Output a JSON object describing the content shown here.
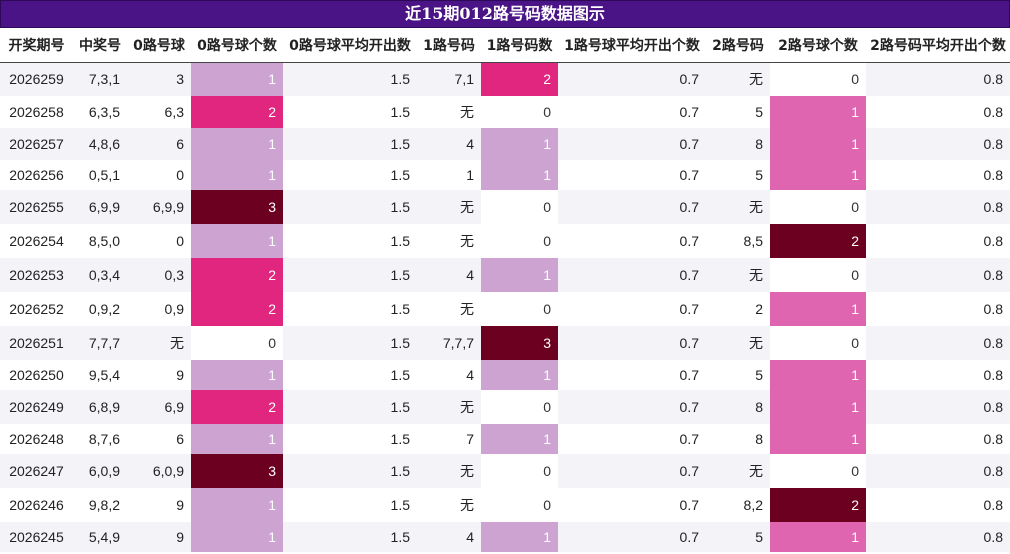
{
  "title": "近15期012路号码数据图示",
  "columns": [
    "开奖期号",
    "中奖号",
    "0路号球",
    "0路号球个数",
    "0路号球平均开出数",
    "1路号码",
    "1路号码数",
    "1路号球平均开出个数",
    "2路号码",
    "2路号球个数",
    "2路号码平均开出个数"
  ],
  "colors": {
    "title_bg": "#4a1486",
    "zero_count_0": "#ffffff",
    "zero_count_1": "#cda3d1",
    "zero_count_2": "#e0267e",
    "zero_count_3": "#6b0020",
    "one_count_0": "#ffffff",
    "one_count_1": "#cda3d1",
    "one_count_2": "#e0267e",
    "one_count_3": "#6b0020",
    "two_count_0": "#ffffff",
    "two_count_1": "#e065b1",
    "two_count_2": "#6b0020"
  },
  "rows": [
    {
      "period": "2026259",
      "number": "7,3,1",
      "r0": "3",
      "r0_count": "1",
      "r0_avg": "1.5",
      "r1": "7,1",
      "r1_count": "2",
      "r1_avg": "0.7",
      "r2": "无",
      "r2_count": "0",
      "r2_avg": "0.8"
    },
    {
      "period": "2026258",
      "number": "6,3,5",
      "r0": "6,3",
      "r0_count": "2",
      "r0_avg": "1.5",
      "r1": "无",
      "r1_count": "0",
      "r1_avg": "0.7",
      "r2": "5",
      "r2_count": "1",
      "r2_avg": "0.8"
    },
    {
      "period": "2026257",
      "number": "4,8,6",
      "r0": "6",
      "r0_count": "1",
      "r0_avg": "1.5",
      "r1": "4",
      "r1_count": "1",
      "r1_avg": "0.7",
      "r2": "8",
      "r2_count": "1",
      "r2_avg": "0.8"
    },
    {
      "period": "2026256",
      "number": "0,5,1",
      "r0": "0",
      "r0_count": "1",
      "r0_avg": "1.5",
      "r1": "1",
      "r1_count": "1",
      "r1_avg": "0.7",
      "r2": "5",
      "r2_count": "1",
      "r2_avg": "0.8"
    },
    {
      "period": "2026255",
      "number": "6,9,9",
      "r0": "6,9,9",
      "r0_count": "3",
      "r0_avg": "1.5",
      "r1": "无",
      "r1_count": "0",
      "r1_avg": "0.7",
      "r2": "无",
      "r2_count": "0",
      "r2_avg": "0.8"
    },
    {
      "period": "2026254",
      "number": "8,5,0",
      "r0": "0",
      "r0_count": "1",
      "r0_avg": "1.5",
      "r1": "无",
      "r1_count": "0",
      "r1_avg": "0.7",
      "r2": "8,5",
      "r2_count": "2",
      "r2_avg": "0.8"
    },
    {
      "period": "2026253",
      "number": "0,3,4",
      "r0": "0,3",
      "r0_count": "2",
      "r0_avg": "1.5",
      "r1": "4",
      "r1_count": "1",
      "r1_avg": "0.7",
      "r2": "无",
      "r2_count": "0",
      "r2_avg": "0.8"
    },
    {
      "period": "2026252",
      "number": "0,9,2",
      "r0": "0,9",
      "r0_count": "2",
      "r0_avg": "1.5",
      "r1": "无",
      "r1_count": "0",
      "r1_avg": "0.7",
      "r2": "2",
      "r2_count": "1",
      "r2_avg": "0.8"
    },
    {
      "period": "2026251",
      "number": "7,7,7",
      "r0": "无",
      "r0_count": "0",
      "r0_avg": "1.5",
      "r1": "7,7,7",
      "r1_count": "3",
      "r1_avg": "0.7",
      "r2": "无",
      "r2_count": "0",
      "r2_avg": "0.8"
    },
    {
      "period": "2026250",
      "number": "9,5,4",
      "r0": "9",
      "r0_count": "1",
      "r0_avg": "1.5",
      "r1": "4",
      "r1_count": "1",
      "r1_avg": "0.7",
      "r2": "5",
      "r2_count": "1",
      "r2_avg": "0.8"
    },
    {
      "period": "2026249",
      "number": "6,8,9",
      "r0": "6,9",
      "r0_count": "2",
      "r0_avg": "1.5",
      "r1": "无",
      "r1_count": "0",
      "r1_avg": "0.7",
      "r2": "8",
      "r2_count": "1",
      "r2_avg": "0.8"
    },
    {
      "period": "2026248",
      "number": "8,7,6",
      "r0": "6",
      "r0_count": "1",
      "r0_avg": "1.5",
      "r1": "7",
      "r1_count": "1",
      "r1_avg": "0.7",
      "r2": "8",
      "r2_count": "1",
      "r2_avg": "0.8"
    },
    {
      "period": "2026247",
      "number": "6,0,9",
      "r0": "6,0,9",
      "r0_count": "3",
      "r0_avg": "1.5",
      "r1": "无",
      "r1_count": "0",
      "r1_avg": "0.7",
      "r2": "无",
      "r2_count": "0",
      "r2_avg": "0.8"
    },
    {
      "period": "2026246",
      "number": "9,8,2",
      "r0": "9",
      "r0_count": "1",
      "r0_avg": "1.5",
      "r1": "无",
      "r1_count": "0",
      "r1_avg": "0.7",
      "r2": "8,2",
      "r2_count": "2",
      "r2_avg": "0.8"
    },
    {
      "period": "2026245",
      "number": "5,4,9",
      "r0": "9",
      "r0_count": "1",
      "r0_avg": "1.5",
      "r1": "4",
      "r1_count": "1",
      "r1_avg": "0.7",
      "r2": "5",
      "r2_count": "1",
      "r2_avg": "0.8"
    }
  ]
}
